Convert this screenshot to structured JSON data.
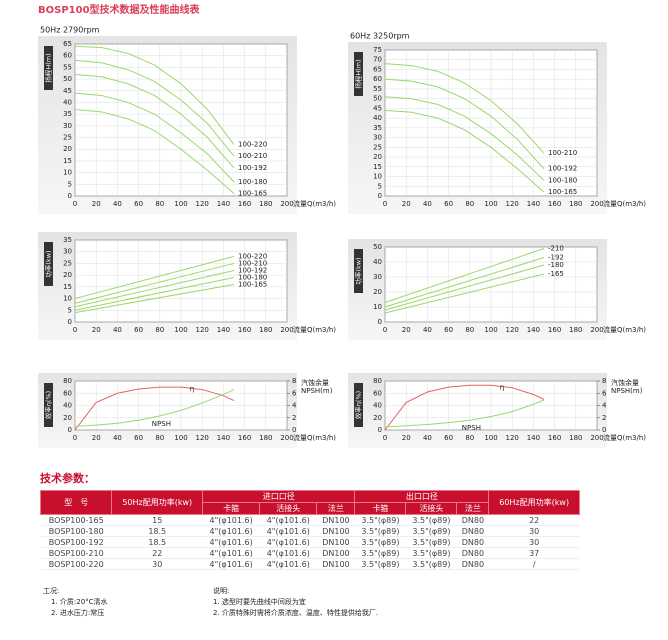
{
  "title": "BOSP100型技术数据及性能曲线表",
  "chart_data": [
    {
      "type": "line",
      "header": "50Hz   2790rpm",
      "ylabel": "扬程H(m)",
      "xlabel": "流量Q(m3/h)",
      "xlim": [
        0,
        200
      ],
      "xticks": [
        0,
        20,
        40,
        60,
        80,
        100,
        120,
        140,
        160,
        180,
        200
      ],
      "ylim": [
        0,
        65
      ],
      "yticks": [
        0,
        5,
        10,
        15,
        20,
        25,
        30,
        35,
        40,
        45,
        50,
        55,
        60,
        65
      ],
      "x": [
        0,
        25,
        50,
        75,
        100,
        125,
        150
      ],
      "series": [
        {
          "name": "100-220",
          "color": "#9ad86a",
          "values": [
            64,
            63.5,
            61,
            56,
            48,
            37,
            22
          ]
        },
        {
          "name": "100-210",
          "color": "#9ad86a",
          "values": [
            58,
            57,
            54,
            49,
            41,
            31,
            17
          ]
        },
        {
          "name": "100-192",
          "color": "#9ad86a",
          "values": [
            52,
            51,
            48,
            43,
            35,
            25,
            12
          ]
        },
        {
          "name": "100-180",
          "color": "#9ad86a",
          "values": [
            44,
            43,
            40,
            35,
            27,
            18,
            6
          ]
        },
        {
          "name": "100-165",
          "color": "#9ad86a",
          "values": [
            37,
            36,
            33,
            28,
            20,
            11,
            1
          ]
        }
      ]
    },
    {
      "type": "line",
      "header": "60Hz   3250rpm",
      "ylabel": "扬程H(m)",
      "xlabel": "流量Q(m3/h)",
      "xlim": [
        0,
        200
      ],
      "xticks": [
        0,
        20,
        40,
        60,
        80,
        100,
        120,
        140,
        160,
        180,
        200
      ],
      "ylim": [
        0,
        75
      ],
      "yticks": [
        0,
        5,
        10,
        15,
        20,
        25,
        30,
        35,
        40,
        45,
        50,
        55,
        60,
        65,
        70,
        75
      ],
      "x": [
        0,
        25,
        50,
        75,
        100,
        125,
        150
      ],
      "series": [
        {
          "name": "100-210",
          "color": "#9ad86a",
          "values": [
            68,
            67,
            64,
            58,
            49,
            37,
            22
          ]
        },
        {
          "name": "100-192",
          "color": "#9ad86a",
          "values": [
            60,
            59,
            56,
            50,
            41,
            29,
            14
          ]
        },
        {
          "name": "100-180",
          "color": "#9ad86a",
          "values": [
            51,
            50,
            47,
            41,
            32,
            21,
            8
          ]
        },
        {
          "name": "100-165",
          "color": "#9ad86a",
          "values": [
            44,
            43,
            40,
            34,
            25,
            14,
            2
          ]
        }
      ]
    },
    {
      "type": "line",
      "ylabel": "功率(kw)",
      "xlabel": "流量Q(m3/h)",
      "xlim": [
        0,
        200
      ],
      "xticks": [
        0,
        20,
        40,
        60,
        80,
        100,
        120,
        140,
        160,
        180,
        200
      ],
      "ylim": [
        0,
        35
      ],
      "yticks": [
        0,
        5,
        10,
        15,
        20,
        25,
        30,
        35
      ],
      "x": [
        0,
        150
      ],
      "series": [
        {
          "name": "100-220",
          "color": "#9ad86a",
          "values": [
            10,
            28
          ]
        },
        {
          "name": "100-210",
          "color": "#9ad86a",
          "values": [
            8,
            25
          ]
        },
        {
          "name": "100-192",
          "color": "#9ad86a",
          "values": [
            6.5,
            22
          ]
        },
        {
          "name": "100-180",
          "color": "#9ad86a",
          "values": [
            5,
            19
          ]
        },
        {
          "name": "100-165",
          "color": "#9ad86a",
          "values": [
            4,
            16
          ]
        }
      ]
    },
    {
      "type": "line",
      "ylabel": "功率(kw)",
      "xlabel": "流量Q(m3/h)",
      "xlim": [
        0,
        200
      ],
      "xticks": [
        0,
        20,
        40,
        60,
        80,
        100,
        120,
        140,
        160,
        180,
        200
      ],
      "ylim": [
        0,
        50
      ],
      "yticks": [
        0,
        10,
        20,
        30,
        40,
        50
      ],
      "x": [
        0,
        150
      ],
      "series": [
        {
          "name": "-210",
          "color": "#9ad86a",
          "values": [
            13,
            49
          ]
        },
        {
          "name": "-192",
          "color": "#9ad86a",
          "values": [
            10,
            43
          ]
        },
        {
          "name": "-180",
          "color": "#9ad86a",
          "values": [
            8,
            38
          ]
        },
        {
          "name": "-165",
          "color": "#9ad86a",
          "values": [
            6,
            32
          ]
        }
      ]
    },
    {
      "type": "line",
      "ylabel": "效率η(%)",
      "xlabel": "流量Q(m3/h)",
      "y2label": [
        "汽蚀余量",
        "NPSH(m)"
      ],
      "xlim": [
        0,
        200
      ],
      "xticks": [
        0,
        20,
        40,
        60,
        80,
        100,
        120,
        140,
        160,
        180,
        200
      ],
      "ylim": [
        0,
        80
      ],
      "yticks": [
        0,
        20,
        40,
        60,
        80
      ],
      "y2lim": [
        0,
        8
      ],
      "y2ticks": [
        0,
        2,
        4,
        6,
        8
      ],
      "x": [
        0,
        20,
        40,
        60,
        80,
        100,
        120,
        140,
        150
      ],
      "series": [
        {
          "name": "η",
          "color": "#e06666",
          "values": [
            0,
            45,
            60,
            67,
            70,
            70,
            66,
            56,
            48
          ]
        },
        {
          "name": "NPSH",
          "color": "#9ad86a",
          "axis": "y2",
          "values": [
            0.6,
            0.8,
            1.1,
            1.6,
            2.3,
            3.2,
            4.4,
            5.8,
            6.6
          ]
        }
      ]
    },
    {
      "type": "line",
      "ylabel": "效率η(%)",
      "xlabel": "流量Q(m3/h)",
      "y2label": [
        "汽蚀余量",
        "NPSH(m)"
      ],
      "xlim": [
        0,
        200
      ],
      "xticks": [
        0,
        20,
        40,
        60,
        80,
        100,
        120,
        140,
        160,
        180,
        200
      ],
      "ylim": [
        0,
        80
      ],
      "yticks": [
        0,
        20,
        40,
        60,
        80
      ],
      "y2lim": [
        0,
        8
      ],
      "y2ticks": [
        0,
        2,
        4,
        6,
        8
      ],
      "x": [
        0,
        20,
        40,
        60,
        80,
        100,
        120,
        140,
        150
      ],
      "series": [
        {
          "name": "η",
          "color": "#e06666",
          "values": [
            0,
            45,
            62,
            70,
            73,
            73,
            69,
            58,
            50
          ]
        },
        {
          "name": "NPSH",
          "color": "#9ad86a",
          "axis": "y2",
          "values": [
            0.5,
            0.7,
            0.9,
            1.2,
            1.6,
            2.2,
            3,
            4.2,
            4.9
          ]
        }
      ]
    }
  ],
  "table": {
    "title": "技术参数：",
    "header": [
      "型　号",
      "50Hz配用功率(kw)",
      "进口口径",
      "出口口径",
      "60Hz配用功率(kw)"
    ],
    "subheader": [
      "卡箍",
      "活接头",
      "法兰",
      "卡箍",
      "活接头",
      "法兰"
    ],
    "rows": [
      [
        "BOSP100-165",
        "15",
        "4\"(φ101.6)",
        "4\"(φ101.6)",
        "DN100",
        "3.5\"(φ89)",
        "3.5\"(φ89)",
        "DN80",
        "22"
      ],
      [
        "BOSP100-180",
        "18.5",
        "4\"(φ101.6)",
        "4\"(φ101.6)",
        "DN100",
        "3.5\"(φ89)",
        "3.5\"(φ89)",
        "DN80",
        "30"
      ],
      [
        "BOSP100-192",
        "18.5",
        "4\"(φ101.6)",
        "4\"(φ101.6)",
        "DN100",
        "3.5\"(φ89)",
        "3.5\"(φ89)",
        "DN80",
        "30"
      ],
      [
        "BOSP100-210",
        "22",
        "4\"(φ101.6)",
        "4\"(φ101.6)",
        "DN100",
        "3.5\"(φ89)",
        "3.5\"(φ89)",
        "DN80",
        "37"
      ],
      [
        "BOSP100-220",
        "30",
        "4\"(φ101.6)",
        "4\"(φ101.6)",
        "DN100",
        "3.5\"(φ89)",
        "3.5\"(φ89)",
        "DN80",
        "/"
      ]
    ]
  },
  "notes": {
    "conditions_title": "工况:",
    "conditions": [
      "1. 介质:20°C清水",
      "2. 进水压力:常压"
    ],
    "remarks_title": "说明:",
    "remarks": [
      "1. 选型时要先曲线中间段为宜",
      "2. 介质特殊时需将介质浓度、温度、特性提供给我厂."
    ]
  }
}
